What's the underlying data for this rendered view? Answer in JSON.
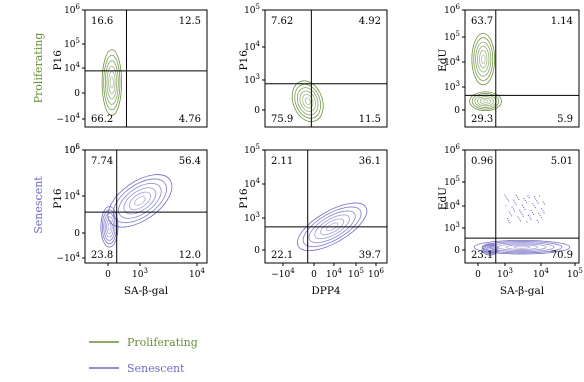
{
  "colors": {
    "proliferating": "#6a8f3c",
    "senescent": "#6f6cc4",
    "axis": "#000000",
    "gate": "#000000"
  },
  "row_labels": [
    "Proliferating",
    "Senescent"
  ],
  "legend": [
    {
      "label": "Proliferating",
      "color": "#6a8f3c"
    },
    {
      "label": "Senescent",
      "color": "#6f6cc4"
    }
  ],
  "chart_data": [
    {
      "type": "contour",
      "row": "Proliferating",
      "xlabel": "",
      "ylabel": "P16",
      "xticks": [],
      "yticks": [
        "−10^4",
        "0",
        "10^4",
        "10^5",
        "10^6"
      ],
      "quadrants": {
        "top_left": "16.6",
        "top_right": "12.5",
        "bottom_left": "66.2",
        "bottom_right": "4.76"
      }
    },
    {
      "type": "contour",
      "row": "Proliferating",
      "xlabel": "",
      "ylabel": "P16",
      "xticks": [],
      "yticks": [
        "0",
        "10^3",
        "10^4",
        "10^5"
      ],
      "quadrants": {
        "top_left": "7.62",
        "top_right": "4.92",
        "bottom_left": "75.9",
        "bottom_right": "11.5"
      }
    },
    {
      "type": "contour",
      "row": "Proliferating",
      "xlabel": "",
      "ylabel": "EdU",
      "xticks": [],
      "yticks": [
        "0",
        "10^3",
        "10^4",
        "10^5",
        "10^6"
      ],
      "quadrants": {
        "top_left": "63.7",
        "top_right": "1.14",
        "bottom_left": "29.3",
        "bottom_right": "5.9"
      }
    },
    {
      "type": "contour",
      "row": "Senescent",
      "xlabel": "SA-β-gal",
      "ylabel": "P16",
      "xticks": [
        "0",
        "10^3",
        "10^4"
      ],
      "yticks": [
        "−10^4",
        "0",
        "10^4",
        "10^5",
        "10^6"
      ],
      "quadrants": {
        "top_left": "7.74",
        "top_right": "56.4",
        "bottom_left": "23.8",
        "bottom_right": "12.0"
      }
    },
    {
      "type": "contour",
      "row": "Senescent",
      "xlabel": "DPP4",
      "ylabel": "P16",
      "xticks": [
        "−10^4",
        "0",
        "10^4",
        "10^5",
        "10^6"
      ],
      "yticks": [
        "0",
        "10^3",
        "10^4",
        "10^5"
      ],
      "quadrants": {
        "top_left": "2.11",
        "top_right": "36.1",
        "bottom_left": "22.1",
        "bottom_right": "39.7"
      }
    },
    {
      "type": "contour",
      "row": "Senescent",
      "xlabel": "SA-β-gal",
      "ylabel": "EdU",
      "xticks": [
        "0",
        "10^3",
        "10^4",
        "10^5"
      ],
      "yticks": [
        "0",
        "10^3",
        "10^4",
        "10^5",
        "10^6"
      ],
      "quadrants": {
        "top_left": "0.96",
        "top_right": "5.01",
        "bottom_left": "23.1",
        "bottom_right": "70.9"
      }
    }
  ]
}
